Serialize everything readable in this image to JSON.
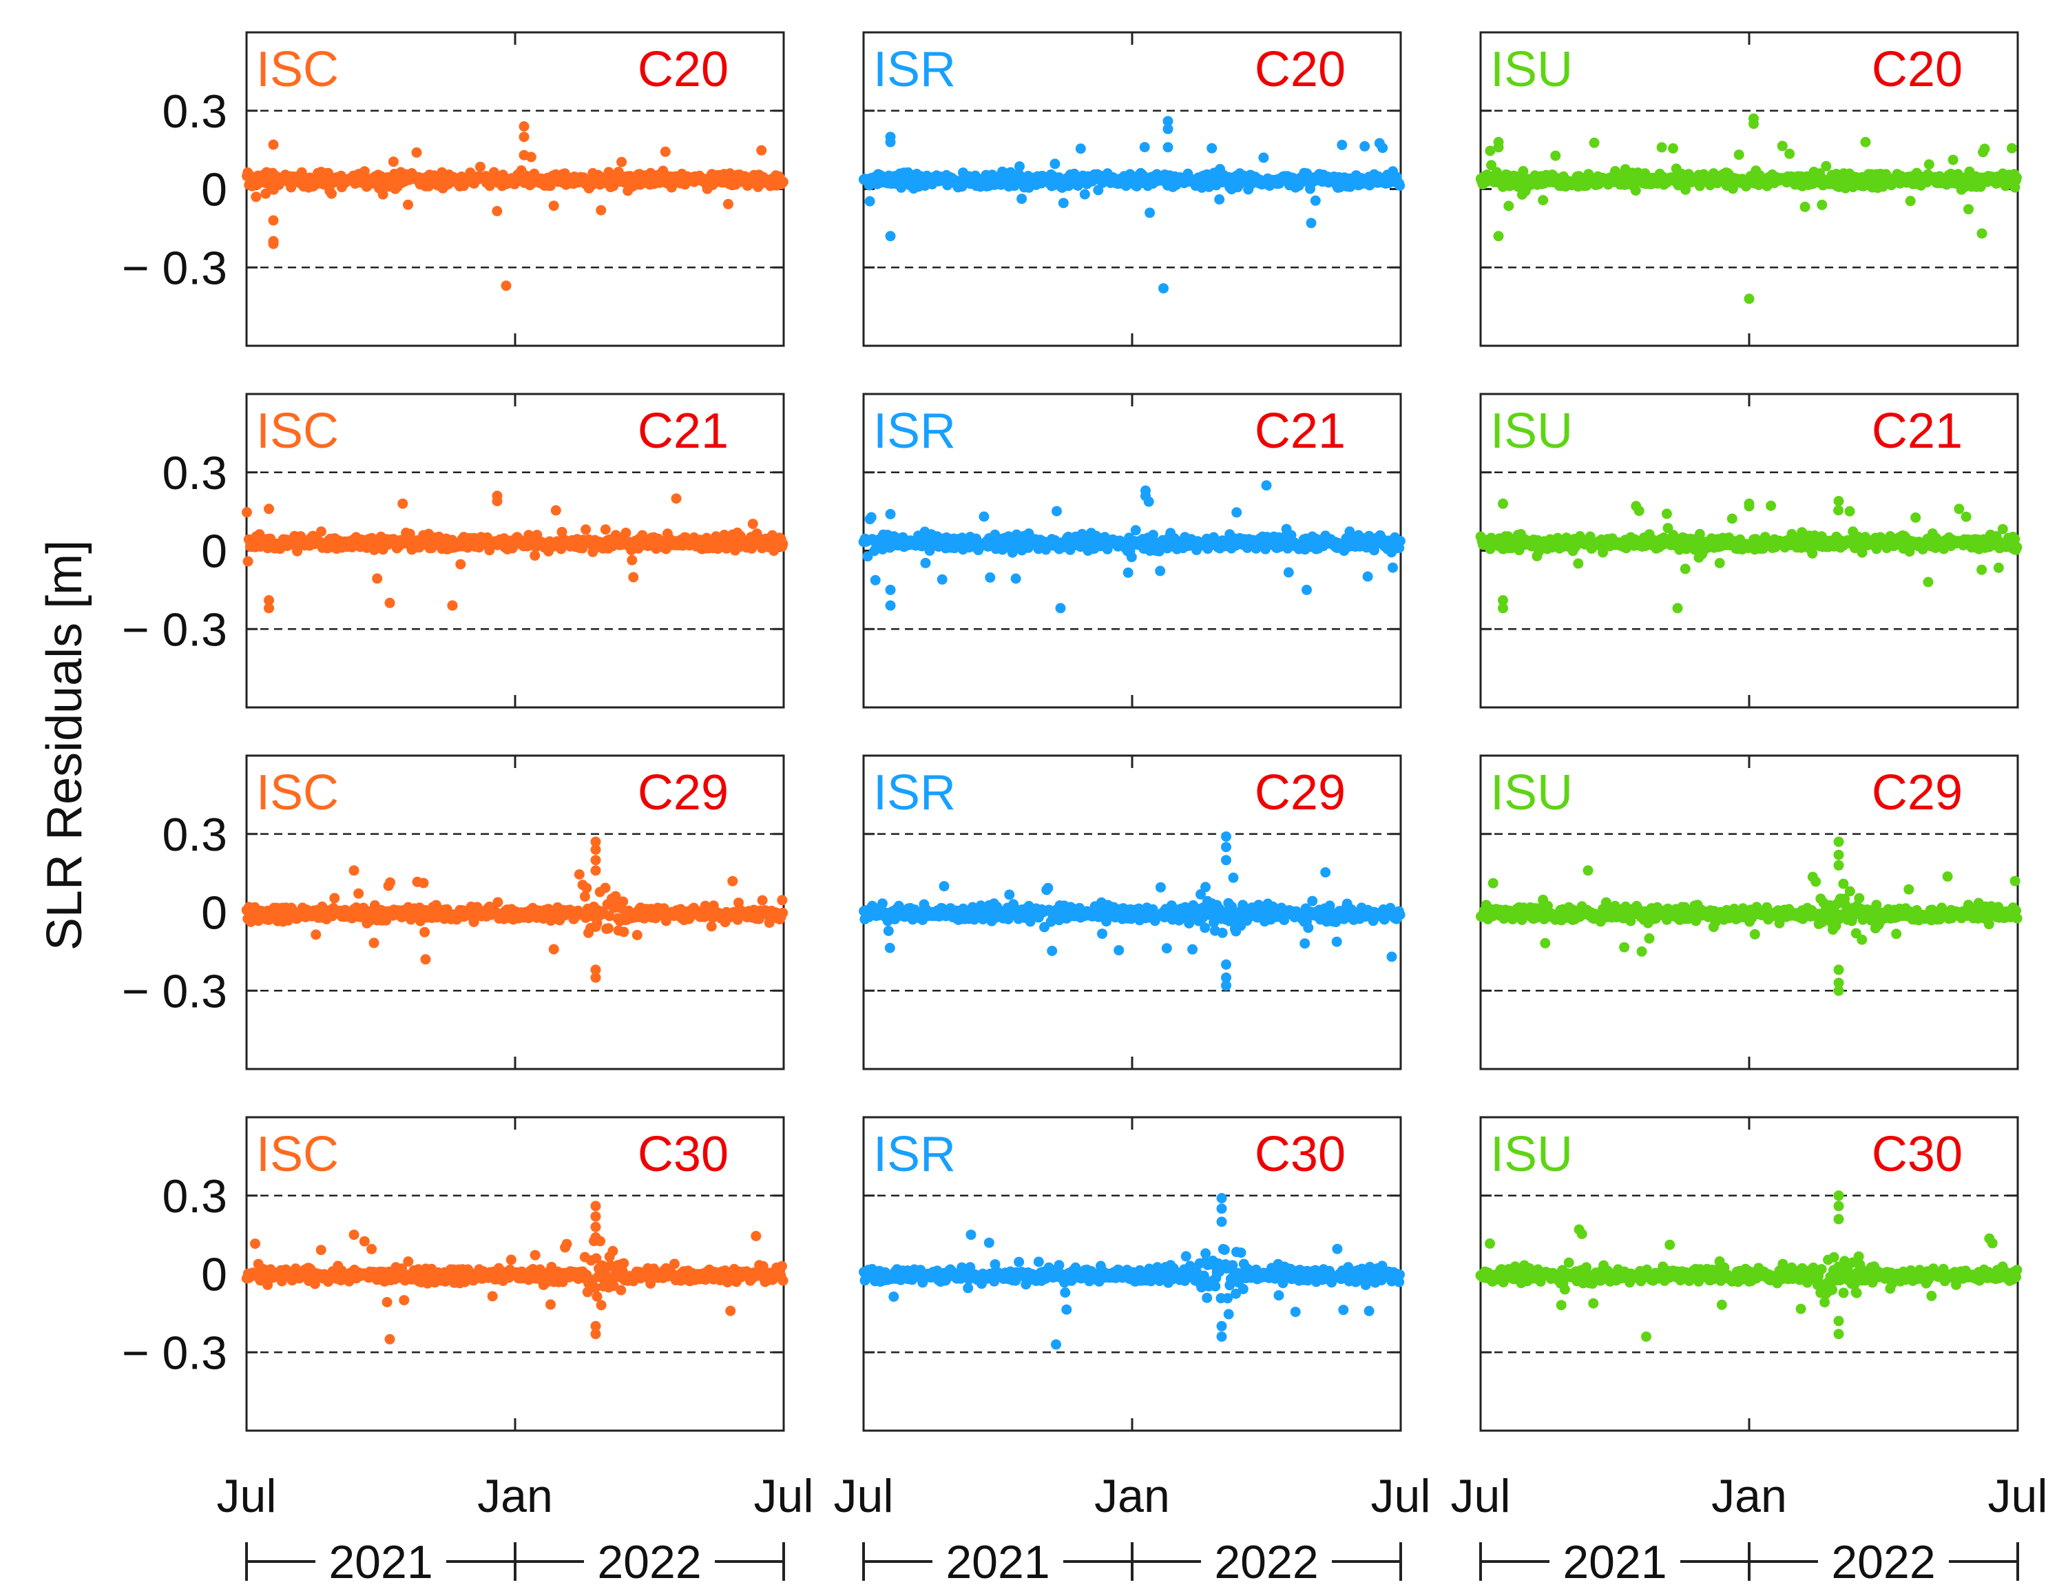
{
  "figure": {
    "ylabel": "SLR Residuals [m]"
  },
  "chart_data": {
    "type": "scatter",
    "ylabel": "SLR Residuals [m]",
    "ylim": [
      -0.6,
      0.6
    ],
    "y_ticks": [
      {
        "value": 0.3,
        "label": "0.3"
      },
      {
        "value": 0,
        "label": "0"
      },
      {
        "value": -0.3,
        "label": "− 0.3"
      }
    ],
    "reference_lines": [
      0.3,
      -0.3
    ],
    "x_ticks": [
      "Jul",
      "Jan",
      "Jul"
    ],
    "year_labels": [
      "2021",
      "2022"
    ],
    "x_range_months": [
      0,
      12
    ],
    "columns": [
      {
        "solution": "ISC",
        "color": "#ff6a1f"
      },
      {
        "solution": "ISR",
        "color": "#18a0ff"
      },
      {
        "solution": "ISU",
        "color": "#5ed414"
      }
    ],
    "rows": [
      {
        "satellite": "C20",
        "label_color": "#ee0000"
      },
      {
        "satellite": "C21",
        "label_color": "#ee0000"
      },
      {
        "satellite": "C29",
        "label_color": "#ee0000"
      },
      {
        "satellite": "C30",
        "label_color": "#ee0000"
      }
    ],
    "panel_outliers": [
      [
        {
          "t": 0.6,
          "r": [
            -0.21,
            -0.2,
            -0.2,
            -0.12,
            0.17
          ]
        },
        {
          "t": 6.2,
          "r": [
            0.24,
            0.2,
            0.13
          ]
        },
        {
          "t": 5.8,
          "r": [
            -0.37
          ]
        },
        {
          "t": 3.8,
          "r": [
            0.14
          ]
        }
      ],
      [
        {
          "t": 0.6,
          "r": [
            0.2,
            0.18,
            -0.18
          ]
        },
        {
          "t": 6.8,
          "r": [
            0.26,
            0.23,
            0.16
          ]
        },
        {
          "t": 6.7,
          "r": [
            -0.38
          ]
        },
        {
          "t": 10.0,
          "r": [
            -0.13
          ]
        }
      ],
      [
        {
          "t": 0.4,
          "r": [
            0.18,
            0.16,
            -0.18
          ]
        },
        {
          "t": 6.1,
          "r": [
            0.27,
            0.25
          ]
        },
        {
          "t": 6.0,
          "r": [
            -0.42
          ]
        },
        {
          "t": 8.6,
          "r": [
            0.18
          ]
        },
        {
          "t": 11.2,
          "r": [
            -0.17
          ]
        }
      ],
      [
        {
          "t": 0.5,
          "r": [
            -0.22,
            -0.19,
            0.16
          ]
        },
        {
          "t": 4.6,
          "r": [
            -0.21,
            -0.21
          ]
        },
        {
          "t": 5.6,
          "r": [
            0.21,
            0.19
          ]
        },
        {
          "t": 9.6,
          "r": [
            0.2
          ]
        },
        {
          "t": 3.2,
          "r": [
            -0.2
          ]
        }
      ],
      [
        {
          "t": 0.6,
          "r": [
            -0.21,
            -0.15,
            0.14
          ]
        },
        {
          "t": 4.4,
          "r": [
            -0.22
          ]
        },
        {
          "t": 6.3,
          "r": [
            0.21,
            0.23
          ]
        },
        {
          "t": 9.0,
          "r": [
            0.25
          ]
        },
        {
          "t": 9.9,
          "r": [
            -0.15
          ]
        }
      ],
      [
        {
          "t": 0.5,
          "r": [
            -0.22,
            -0.19,
            0.18
          ]
        },
        {
          "t": 4.4,
          "r": [
            -0.22
          ]
        },
        {
          "t": 6.0,
          "r": [
            0.18,
            0.17
          ]
        },
        {
          "t": 8.0,
          "r": [
            0.19
          ]
        },
        {
          "t": 10.0,
          "r": [
            -0.12
          ]
        }
      ],
      [
        {
          "t": 7.8,
          "r": [
            0.27,
            0.24,
            0.2,
            0.16,
            -0.25,
            -0.22
          ]
        },
        {
          "t": 2.4,
          "r": [
            0.16
          ]
        },
        {
          "t": 4.0,
          "r": [
            -0.18
          ]
        }
      ],
      [
        {
          "t": 8.1,
          "r": [
            0.29,
            0.25,
            0.2,
            -0.28,
            -0.25,
            -0.2
          ]
        },
        {
          "t": 1.8,
          "r": [
            0.1
          ]
        },
        {
          "t": 11.8,
          "r": [
            -0.17
          ]
        }
      ],
      [
        {
          "t": 8.0,
          "r": [
            0.27,
            0.22,
            0.18,
            -0.3,
            -0.27,
            -0.22
          ]
        },
        {
          "t": 2.4,
          "r": [
            0.16
          ]
        },
        {
          "t": 3.6,
          "r": [
            -0.15
          ]
        }
      ],
      [
        {
          "t": 7.8,
          "r": [
            0.26,
            0.22,
            0.18,
            0.14,
            -0.23,
            -0.2
          ]
        },
        {
          "t": 3.2,
          "r": [
            -0.25
          ]
        },
        {
          "t": 2.4,
          "r": [
            0.15
          ]
        }
      ],
      [
        {
          "t": 8.0,
          "r": [
            0.29,
            0.25,
            0.2,
            -0.24,
            -0.2
          ]
        },
        {
          "t": 4.3,
          "r": [
            -0.27
          ]
        },
        {
          "t": 2.4,
          "r": [
            0.15
          ]
        }
      ],
      [
        {
          "t": 8.0,
          "r": [
            0.3,
            0.26,
            0.21,
            -0.23,
            -0.18
          ]
        },
        {
          "t": 3.7,
          "r": [
            -0.24
          ]
        },
        {
          "t": 2.2,
          "r": [
            0.17
          ]
        }
      ]
    ]
  }
}
